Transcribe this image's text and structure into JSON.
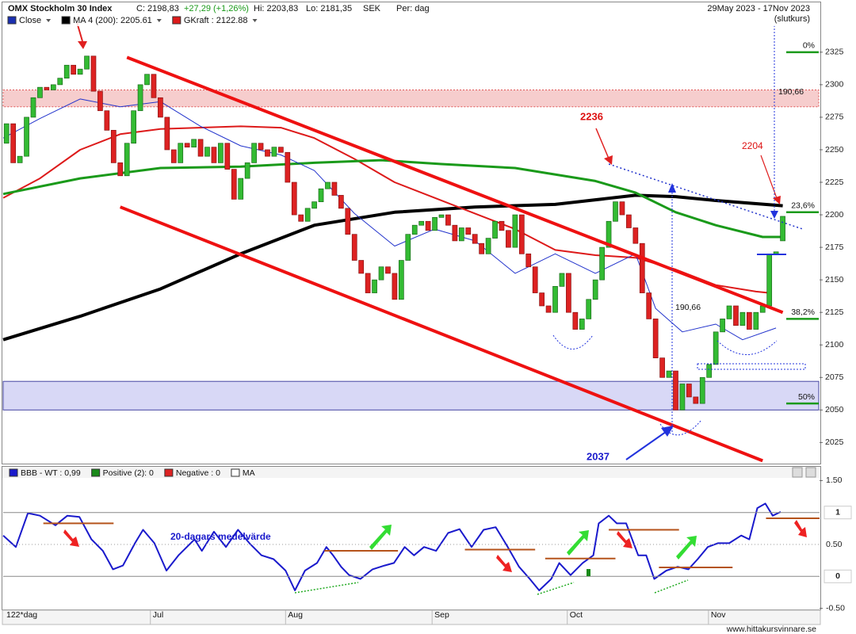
{
  "header": {
    "title": "OMX Stockholm 30 Index",
    "close": "C: 2198,83",
    "change": "+27,29 (+1,26%)",
    "high": "Hi: 2203,83",
    "low": "Lo: 2181,35",
    "currency": "SEK",
    "period": "Per: dag",
    "range": "29May 2023 - 17Nov 2023",
    "note": "(slutkurs)"
  },
  "footer": {
    "span": "122*dag",
    "site": "www.hittakursvinnare.se"
  },
  "chart_data": [
    {
      "type": "candlestick",
      "xlim": [
        -0.5,
        121.5
      ],
      "ylim": [
        2010,
        2345
      ],
      "yticks": [
        2025,
        2050,
        2075,
        2100,
        2125,
        2150,
        2175,
        2200,
        2225,
        2250,
        2275,
        2300,
        2325
      ],
      "series": [
        {
          "name": "Close",
          "color": "#1a2fb0",
          "up_color": "#33bb33",
          "down_color": "#dd2222",
          "open": [
            2255,
            2270,
            2240,
            2245,
            2275,
            2290,
            2298,
            2296,
            2300,
            2305,
            2315,
            2308,
            2312,
            2322,
            2295,
            2280,
            2265,
            2240,
            2230,
            2255,
            2280,
            2300,
            2308,
            2290,
            2275,
            2250,
            2240,
            2255,
            2252,
            2258,
            2245,
            2252,
            2240,
            2255,
            2235,
            2212,
            2228,
            2240,
            2255,
            2250,
            2245,
            2252,
            2248,
            2225,
            2200,
            2195,
            2205,
            2210,
            2220,
            2225,
            2215,
            2205,
            2185,
            2165,
            2155,
            2140,
            2150,
            2160,
            2155,
            2135,
            2165,
            2185,
            2192,
            2195,
            2188,
            2198,
            2200,
            2192,
            2180,
            2190,
            2185,
            2178,
            2170,
            2182,
            2195,
            2188,
            2175,
            2200,
            2170,
            2160,
            2140,
            2130,
            2125,
            2145,
            2155,
            2125,
            2112,
            2120,
            2135,
            2150,
            2175,
            2195,
            2210,
            2200,
            2190,
            2178,
            2140,
            2120,
            2090,
            2075,
            2080,
            2050,
            2070,
            2060,
            2055,
            2075,
            2085,
            2110,
            2120,
            2130,
            2115,
            2125,
            2112,
            2125,
            2130,
            2170,
            2180
          ],
          "close": [
            2270,
            2240,
            2245,
            2275,
            2290,
            2298,
            2296,
            2300,
            2305,
            2315,
            2308,
            2312,
            2322,
            2295,
            2280,
            2265,
            2240,
            2230,
            2255,
            2280,
            2300,
            2308,
            2290,
            2275,
            2250,
            2240,
            2255,
            2252,
            2258,
            2245,
            2252,
            2240,
            2255,
            2235,
            2212,
            2228,
            2240,
            2255,
            2250,
            2245,
            2252,
            2248,
            2225,
            2200,
            2195,
            2205,
            2210,
            2220,
            2225,
            2215,
            2205,
            2185,
            2165,
            2155,
            2140,
            2150,
            2160,
            2155,
            2135,
            2165,
            2185,
            2192,
            2195,
            2188,
            2198,
            2200,
            2192,
            2180,
            2190,
            2185,
            2178,
            2170,
            2182,
            2195,
            2188,
            2175,
            2200,
            2170,
            2160,
            2140,
            2130,
            2125,
            2145,
            2155,
            2125,
            2112,
            2120,
            2135,
            2150,
            2175,
            2195,
            2210,
            2200,
            2190,
            2178,
            2140,
            2120,
            2090,
            2075,
            2080,
            2050,
            2070,
            2060,
            2055,
            2075,
            2085,
            2110,
            2120,
            2130,
            2115,
            2125,
            2112,
            2125,
            2130,
            2170,
            2171.54,
            2198.83
          ]
        },
        {
          "name": "MA 4 (200): 2205.61",
          "color": "#000000",
          "width": 4,
          "x": [
            -0.5,
            11,
            23,
            35,
            46,
            58,
            70,
            82,
            94,
            100,
            106,
            116
          ],
          "values": [
            2104,
            2122,
            2143,
            2170,
            2192,
            2202,
            2206,
            2208,
            2215,
            2214,
            2211,
            2207
          ]
        },
        {
          "name": "GKraft : 2122.88",
          "color": "#dd1a1a",
          "width": 2,
          "x": [
            -0.5,
            5,
            11,
            17,
            23,
            35,
            41,
            46,
            52,
            58,
            64,
            70,
            76,
            82,
            88,
            94,
            100,
            106,
            112,
            114
          ],
          "values": [
            2213,
            2228,
            2250,
            2262,
            2266,
            2268,
            2267,
            2259,
            2243,
            2225,
            2213,
            2201,
            2189,
            2173,
            2169,
            2167,
            2158,
            2146,
            2141,
            2140
          ]
        },
        {
          "color": "#1a9a1a",
          "width": 3,
          "x": [
            -0.5,
            11,
            23,
            35,
            46,
            56,
            65,
            76,
            88,
            94,
            100,
            106,
            113,
            116
          ],
          "values": [
            2216,
            2228,
            2236,
            2237,
            2240,
            2242,
            2239,
            2236,
            2226,
            2217,
            2202,
            2192,
            2183,
            2183
          ]
        },
        {
          "color": "#2233cc",
          "width": 1,
          "x": [
            -0.5,
            5,
            11,
            17,
            23,
            29,
            35,
            41,
            46,
            52,
            58,
            64,
            70,
            76,
            82,
            88,
            94,
            97,
            101,
            106,
            110,
            115
          ],
          "values": [
            2259,
            2274,
            2289,
            2283,
            2287,
            2268,
            2253,
            2246,
            2234,
            2201,
            2176,
            2189,
            2180,
            2155,
            2170,
            2155,
            2170,
            2128,
            2110,
            2116,
            2104,
            2113
          ]
        }
      ],
      "trend_lines": [
        {
          "color": "#ee1111",
          "x": [
            18,
            116
          ],
          "values": [
            2321,
            2125
          ]
        },
        {
          "color": "#ee1111",
          "x": [
            17,
            113
          ],
          "values": [
            2206,
            2011
          ]
        },
        {
          "color": "#2233cc",
          "x": [
            90,
            119
          ],
          "values": [
            2239,
            2189
          ]
        }
      ],
      "zones": [
        {
          "color": "#f6c8c8",
          "values": [
            2296,
            2283
          ]
        },
        {
          "color": "#d4d4f6",
          "values": [
            2072,
            2050
          ]
        }
      ],
      "levels": [
        {
          "label": "0%",
          "value": 2325
        },
        {
          "label": "23,6%",
          "value": 2202
        },
        {
          "label": "38,2%",
          "value": 2120
        },
        {
          "label": "50%",
          "value": 2055
        }
      ],
      "annotations": [
        "2236",
        "2204",
        "2037",
        "190,66",
        "190,66"
      ]
    },
    {
      "type": "line",
      "xlim": [
        -0.5,
        121.5
      ],
      "ylim": [
        -0.53,
        1.53
      ],
      "yticks": [
        {
          "value": 1.5,
          "label": "1.50"
        },
        1,
        {
          "value": 0.5,
          "label": "0.50"
        },
        0,
        {
          "value": -0.5,
          "label": "-0.50"
        }
      ],
      "xticks": [
        {
          "value": 21.5,
          "label": "Jul"
        },
        {
          "value": 41.7,
          "label": "Aug"
        },
        {
          "value": 63.6,
          "label": "Sep"
        },
        {
          "value": 83.8,
          "label": "Oct"
        },
        {
          "value": 104.9,
          "label": "Nov"
        }
      ],
      "series": [
        {
          "name": "BBB - WT : 0,99",
          "color": "#1a1acc",
          "x": [
            -0.5,
            1.4,
            3.2,
            5,
            7.3,
            9.1,
            10.9,
            12.7,
            14.4,
            15.9,
            17.4,
            19.2,
            20.4,
            22.1,
            23.9,
            25.7,
            28.1,
            29.2,
            31,
            32.8,
            34.6,
            36.3,
            38.1,
            39.9,
            41.7,
            43.1,
            44.6,
            46.4,
            47.8,
            48.8,
            50,
            51.2,
            52.9,
            54.7,
            56.5,
            57.9,
            59.5,
            60.9,
            62.4,
            64.2,
            66,
            67.7,
            69.5,
            71.3,
            73.1,
            74.9,
            76.6,
            78.2,
            79.6,
            81.4,
            82.6,
            84.3,
            86.1,
            87.7,
            88.5,
            90,
            91.2,
            92.6,
            94.4,
            95.6,
            96.8,
            98.6,
            100.3,
            101.9,
            103.3,
            104.8,
            106.3,
            108,
            109.8,
            111,
            112.2,
            113.4,
            114.5,
            115.7
          ],
          "values": [
            0.64,
            0.46,
            0.99,
            0.95,
            0.8,
            0.95,
            0.93,
            0.58,
            0.4,
            0.11,
            0.17,
            0.52,
            0.73,
            0.52,
            0.09,
            0.33,
            0.58,
            0.4,
            0.7,
            0.46,
            0.73,
            0.52,
            0.33,
            0.27,
            0.09,
            -0.22,
            0.09,
            0.21,
            0.46,
            0.33,
            0.15,
            0.02,
            -0.04,
            0.11,
            0.17,
            0.21,
            0.46,
            0.33,
            0.46,
            0.4,
            0.68,
            0.74,
            0.46,
            0.73,
            0.77,
            0.46,
            0.15,
            -0.04,
            -0.22,
            -0.04,
            0.21,
            0.02,
            0.21,
            0.33,
            0.83,
            0.95,
            0.83,
            0.83,
            0.33,
            0.33,
            -0.04,
            0.09,
            0.15,
            0.11,
            0.27,
            0.46,
            0.52,
            0.52,
            0.64,
            0.58,
            1.07,
            1.14,
            0.95,
            1.01
          ]
        },
        {
          "name": "Positive (2): 0",
          "color": "#1a8a1a"
        },
        {
          "name": "Negative : 0",
          "color": "#dd2222"
        },
        {
          "name": "MA",
          "color": "#ffffff"
        }
      ],
      "mean_segments": [
        {
          "x": [
            5.5,
            16
          ],
          "value": 0.83
        },
        {
          "x": [
            47.5,
            58.5
          ],
          "value": 0.4
        },
        {
          "x": [
            68.5,
            79
          ],
          "value": 0.42
        },
        {
          "x": [
            80.5,
            91
          ],
          "value": 0.28
        },
        {
          "x": [
            90,
            100.5
          ],
          "value": 0.73
        },
        {
          "x": [
            97.5,
            108.5
          ],
          "value": 0.14
        },
        {
          "x": [
            113.5,
            122
          ],
          "value": 0.91
        }
      ],
      "annotation": "20-dagars medelvärde"
    }
  ]
}
